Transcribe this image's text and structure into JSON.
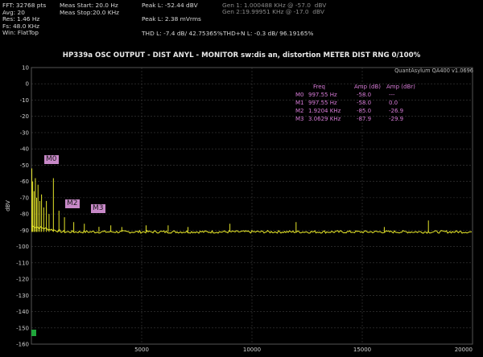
{
  "header": {
    "col1": [
      "FFT: 32768 pts",
      "Avg: 20",
      "Res: 1.46 Hz",
      "Fs: 48.0 KHz",
      "Win: FlatTop"
    ],
    "col2": [
      "Meas Start: 20.0 Hz",
      "Meas Stop:20.0 KHz"
    ],
    "peak1": "Peak L: -52.44 dBV",
    "peak2": "Peak L: 2.38 mVrms",
    "gen1": "Gen 1: 1.000488 KHz @ -57.0  dBV",
    "gen2": "Gen 2:19.99951 KHz @ -17.0  dBV",
    "thd": "THD L: -7.4 dB/ 42.75365%",
    "thdn": "THD+N L: -0.3 dB/ 96.19165%"
  },
  "title": "HP339a OSC OUTPUT - DIST ANYL - MONITOR sw:dis an, distortion METER DIST RNG  0/100%",
  "version": "QuantAsylum QA400 v1.0696",
  "markers": {
    "headers": [
      "Freq",
      "Amp (dB)",
      "Amp (dBr)"
    ],
    "rows": [
      {
        "name": "M0",
        "freq": "997.55 Hz",
        "amp": "-58.0",
        "ampr": "---"
      },
      {
        "name": "M1",
        "freq": "997.55 Hz",
        "amp": "-58.0",
        "ampr": "0.0"
      },
      {
        "name": "M2",
        "freq": "1.9204 KHz",
        "amp": "-85.0",
        "ampr": "-26.9"
      },
      {
        "name": "M3",
        "freq": "3.0629 KHz",
        "amp": "-87.9",
        "ampr": "-29.9"
      }
    ],
    "labels": [
      "M0",
      "M2",
      "M3"
    ]
  },
  "colors": {
    "trace": "#e6e62a",
    "grid": "#3c3c3c",
    "marker": "#c889c8"
  },
  "chart_data": {
    "type": "line",
    "title": "HP339a OSC OUTPUT - DIST ANYL - MONITOR sw:dis an, distortion METER DIST RNG  0/100%",
    "xlabel": "",
    "ylabel": "dBV",
    "xlim": [
      0,
      20000
    ],
    "ylim": [
      -160,
      10
    ],
    "x_ticks": [
      5000,
      10000,
      15000,
      20000
    ],
    "y_ticks": [
      10,
      0,
      -10,
      -20,
      -30,
      -40,
      -50,
      -60,
      -70,
      -80,
      -90,
      -100,
      -110,
      -120,
      -130,
      -140,
      -150,
      -160
    ],
    "grid": true,
    "noise_floor_dbv": -91,
    "series": [
      {
        "points": [
          [
            20,
            -52
          ],
          [
            60,
            -60
          ],
          [
            120,
            -66
          ],
          [
            180,
            -58
          ],
          [
            240,
            -70
          ],
          [
            300,
            -62
          ],
          [
            380,
            -72
          ],
          [
            460,
            -68
          ],
          [
            560,
            -76
          ],
          [
            680,
            -72
          ],
          [
            800,
            -80
          ],
          [
            997.55,
            -58.0
          ],
          [
            1250,
            -78
          ],
          [
            1500,
            -82
          ],
          [
            1920.4,
            -85.0
          ],
          [
            2400,
            -86
          ],
          [
            3062.9,
            -87.9
          ],
          [
            3600,
            -87
          ],
          [
            4100,
            -88
          ],
          [
            5200,
            -87
          ],
          [
            6200,
            -87
          ],
          [
            7100,
            -88
          ],
          [
            9000,
            -86
          ],
          [
            12000,
            -85
          ],
          [
            16000,
            -88
          ],
          [
            18000,
            -84
          ]
        ]
      }
    ]
  }
}
